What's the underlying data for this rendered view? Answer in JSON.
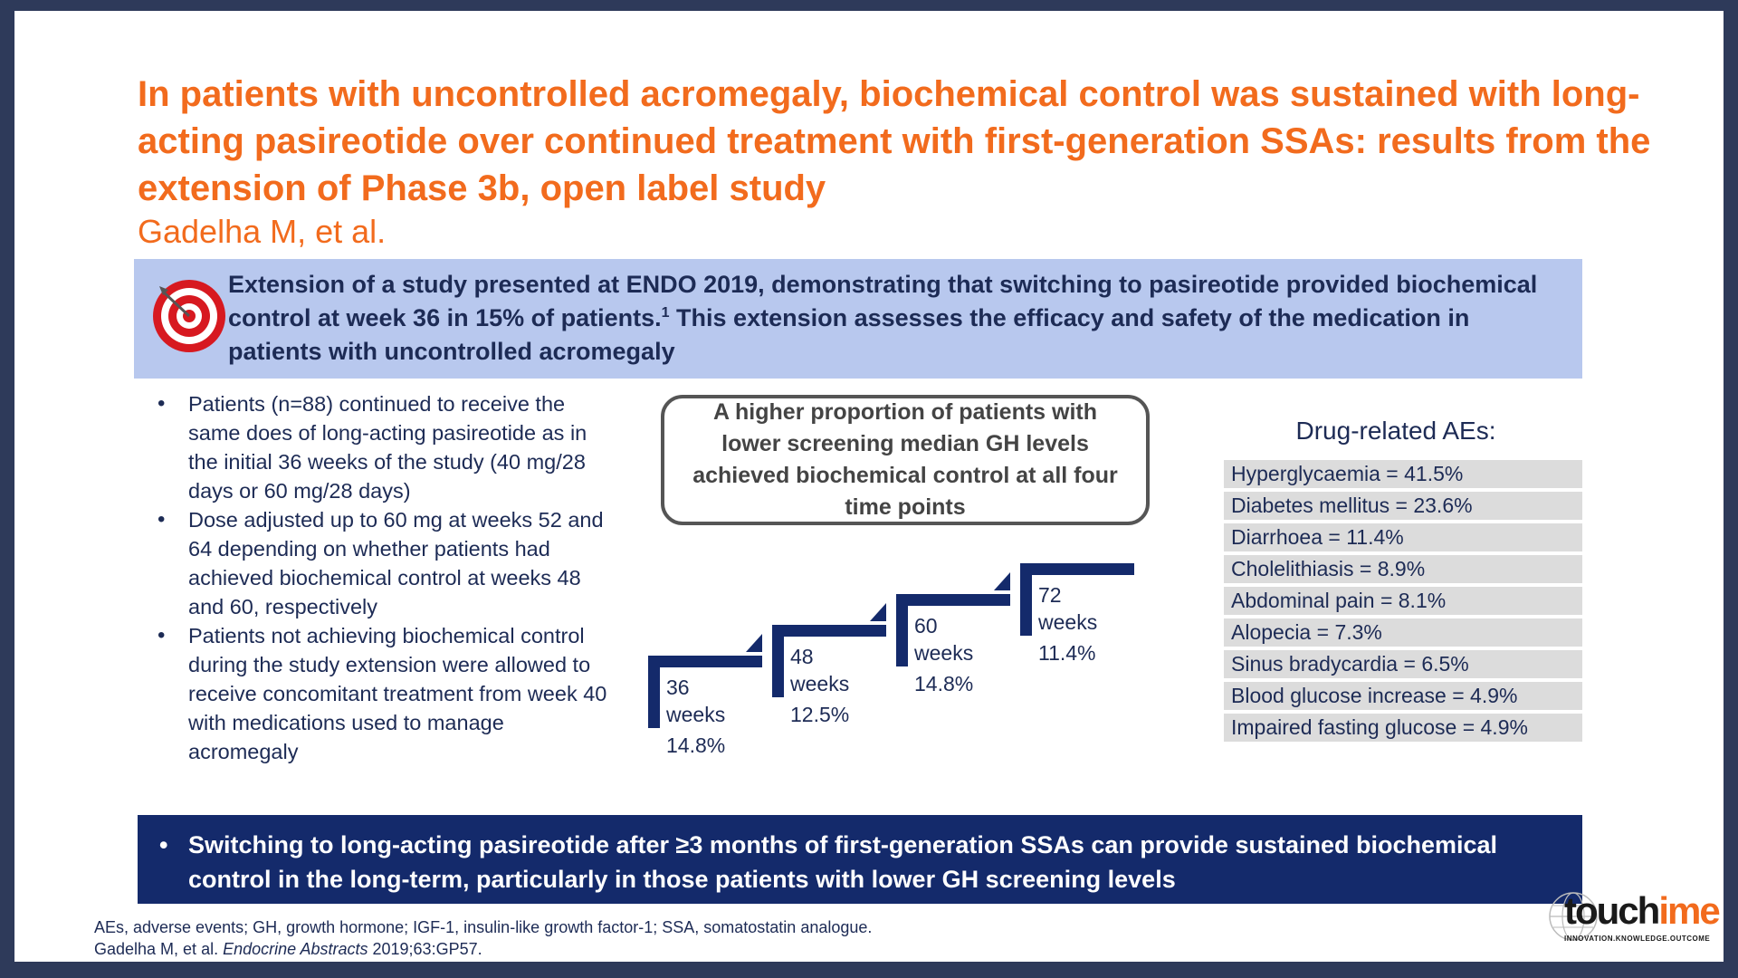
{
  "title": "In patients with uncontrolled acromegaly, biochemical control was sustained with long-acting pasireotide over continued treatment with first-generation SSAs: results from the extension of Phase 3b, open label study",
  "author": "Gadelha M, et al.",
  "intro": {
    "part1": "Extension of a study presented at ENDO 2019, demonstrating that switching to pasireotide provided biochemical control at week 36 in 15% of patients.",
    "sup": "1",
    "part2": " This extension assesses the efficacy and safety of the medication in patients with uncontrolled acromegaly",
    "icon": "target-icon"
  },
  "bullets": [
    "Patients (n=88) continued to receive the same does of long-acting pasireotide as in the initial 36 weeks of the study (40 mg/28 days or 60 mg/28 days)",
    "Dose adjusted up to 60 mg at weeks 52 and 64 depending on whether patients had achieved biochemical control at weeks 48 and 60, respectively",
    "Patients not achieving biochemical control during the study extension were allowed to receive concomitant treatment from week 40 with medications used to manage acromegaly"
  ],
  "callout": "A higher proportion of patients with lower screening median GH levels achieved biochemical control at all four time points",
  "steps": [
    {
      "num": "36",
      "unit": "weeks",
      "value": "14.8%"
    },
    {
      "num": "48",
      "unit": "weeks",
      "value": "12.5%"
    },
    {
      "num": "60",
      "unit": "weeks",
      "value": "14.8%"
    },
    {
      "num": "72",
      "unit": "weeks",
      "value": "11.4%"
    }
  ],
  "ae_title": "Drug-related AEs:",
  "aes": [
    "Hyperglycaemia = 41.5%",
    "Diabetes mellitus = 23.6%",
    "Diarrhoea = 11.4%",
    "Cholelithiasis = 8.9%",
    "Abdominal pain = 8.1%",
    "Alopecia = 7.3%",
    "Sinus bradycardia = 6.5%",
    "Blood glucose increase = 4.9%",
    "Impaired fasting glucose = 4.9%"
  ],
  "conclusion": "Switching to long-acting pasireotide after ≥3 months of first-generation SSAs can provide sustained biochemical control in the long-term, particularly in those patients with lower GH screening levels",
  "footnote": {
    "line1": "AEs, adverse events; GH, growth hormone; IGF-1, insulin-like growth factor-1; SSA, somatostatin analogue.",
    "line2_pre": "Gadelha M, et al. ",
    "line2_journal": "Endocrine Abstracts",
    "line2_post": " 2019;63:GP57."
  },
  "logo": {
    "word_a": "touch",
    "word_b": "ime",
    "tagline": "INNOVATION.KNOWLEDGE.OUTCOME"
  },
  "colors": {
    "accent": "#f26b1d",
    "navy": "#142a6b",
    "intro_bg": "#b8c8ee"
  }
}
